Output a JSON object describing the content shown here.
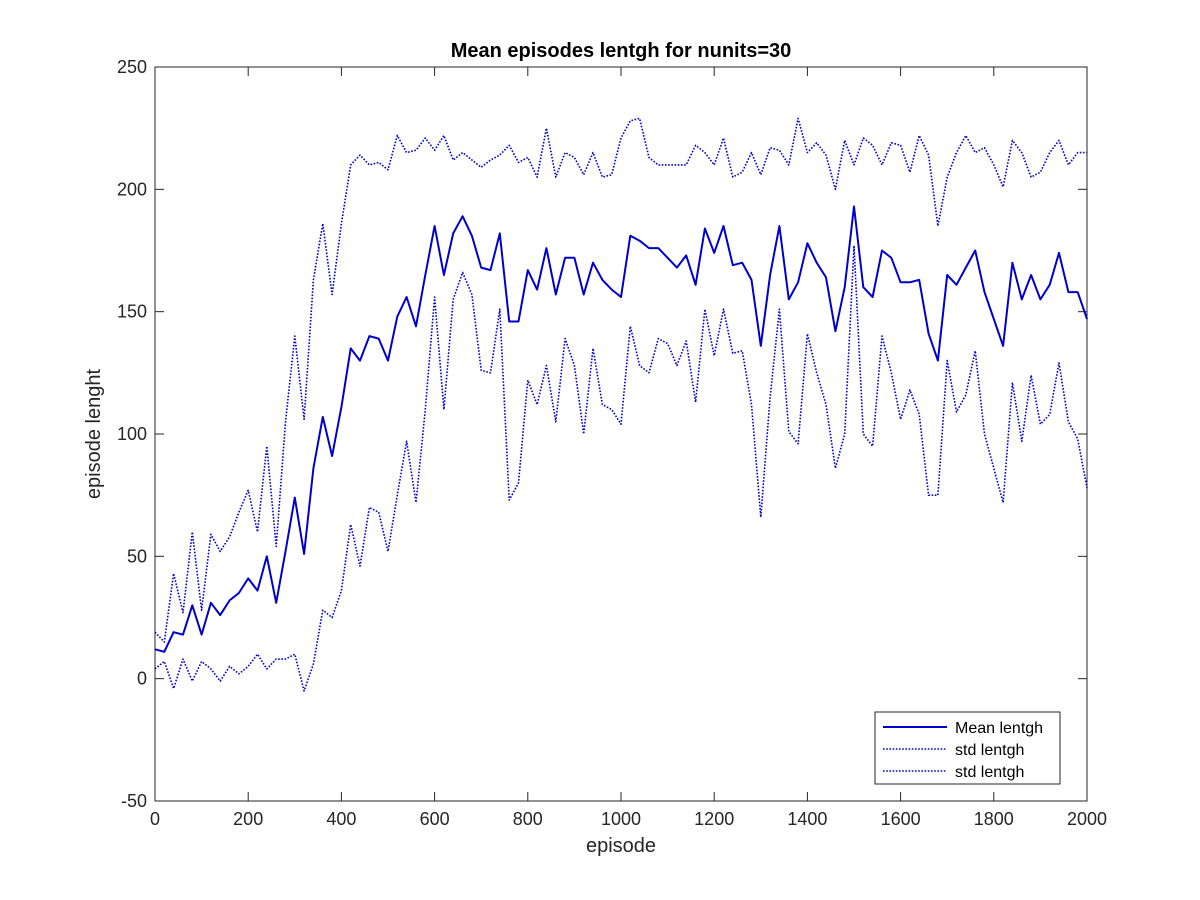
{
  "chart_data": {
    "type": "line",
    "title": "Mean episodes lentgh for nunits=30",
    "xlabel": "episode",
    "ylabel": "episode lenght",
    "xlim": [
      0,
      2000
    ],
    "ylim": [
      -50,
      250
    ],
    "xticks": [
      0,
      200,
      400,
      600,
      800,
      1000,
      1200,
      1400,
      1600,
      1800,
      2000
    ],
    "yticks": [
      -50,
      0,
      50,
      100,
      150,
      200,
      250
    ],
    "grid": false,
    "legend_position": "bottom-right",
    "line_color": "#0000cc",
    "x": [
      0,
      20,
      40,
      60,
      80,
      100,
      120,
      140,
      160,
      180,
      200,
      220,
      240,
      260,
      280,
      300,
      320,
      340,
      360,
      380,
      400,
      420,
      440,
      460,
      480,
      500,
      520,
      540,
      560,
      580,
      600,
      620,
      640,
      660,
      680,
      700,
      720,
      740,
      760,
      780,
      800,
      820,
      840,
      860,
      880,
      900,
      920,
      940,
      960,
      980,
      1000,
      1020,
      1040,
      1060,
      1080,
      1100,
      1120,
      1140,
      1160,
      1180,
      1200,
      1220,
      1240,
      1260,
      1280,
      1300,
      1320,
      1340,
      1360,
      1380,
      1400,
      1420,
      1440,
      1460,
      1480,
      1500,
      1520,
      1540,
      1560,
      1580,
      1600,
      1620,
      1640,
      1660,
      1680,
      1700,
      1720,
      1740,
      1760,
      1780,
      1800,
      1820,
      1840,
      1860,
      1880,
      1900,
      1920,
      1940,
      1960,
      1980,
      2000
    ],
    "series": [
      {
        "name": "Mean lentgh",
        "style": "solid",
        "values": [
          12,
          11,
          19,
          18,
          30,
          18,
          31,
          26,
          32,
          35,
          41,
          36,
          50,
          31,
          52,
          74,
          51,
          86,
          107,
          91,
          111,
          135,
          130,
          140,
          139,
          130,
          148,
          156,
          144,
          165,
          185,
          165,
          182,
          189,
          181,
          168,
          167,
          182,
          146,
          146,
          167,
          159,
          176,
          157,
          172,
          172,
          157,
          170,
          163,
          159,
          156,
          181,
          179,
          176,
          176,
          172,
          168,
          173,
          161,
          184,
          174,
          185,
          169,
          170,
          163,
          136,
          165,
          185,
          155,
          162,
          178,
          170,
          164,
          142,
          160,
          193,
          160,
          156,
          175,
          172,
          162,
          162,
          163,
          141,
          130,
          165,
          161,
          168,
          175,
          158,
          147,
          136,
          170,
          155,
          165,
          155,
          161,
          174,
          158,
          158,
          147
        ]
      },
      {
        "name": "std lentgh",
        "style": "dotted",
        "values": [
          19,
          15,
          43,
          27,
          60,
          28,
          59,
          52,
          58,
          68,
          77,
          60,
          95,
          54,
          105,
          140,
          106,
          163,
          186,
          157,
          186,
          210,
          214,
          210,
          211,
          208,
          222,
          215,
          216,
          221,
          216,
          222,
          212,
          215,
          212,
          209,
          212,
          214,
          218,
          211,
          213,
          205,
          225,
          205,
          215,
          213,
          206,
          215,
          205,
          206,
          221,
          228,
          229,
          213,
          210,
          210,
          210,
          210,
          218,
          215,
          210,
          221,
          205,
          207,
          215,
          206,
          217,
          216,
          210,
          229,
          215,
          219,
          214,
          200,
          220,
          210,
          221,
          218,
          210,
          219,
          218,
          207,
          222,
          214,
          185,
          205,
          215,
          222,
          215,
          217,
          210,
          201,
          220,
          215,
          205,
          207,
          215,
          220,
          210,
          215,
          215
        ]
      },
      {
        "name": "std lentgh",
        "style": "dotted",
        "values": [
          4,
          7,
          -4,
          8,
          -1,
          7,
          4,
          -1,
          5,
          2,
          5,
          10,
          4,
          8,
          8,
          10,
          -5,
          6,
          28,
          25,
          36,
          63,
          46,
          70,
          68,
          52,
          75,
          97,
          72,
          110,
          156,
          110,
          155,
          166,
          157,
          126,
          125,
          151,
          73,
          80,
          122,
          112,
          128,
          105,
          139,
          128,
          100,
          135,
          112,
          110,
          104,
          144,
          128,
          125,
          139,
          137,
          128,
          138,
          113,
          151,
          132,
          151,
          133,
          134,
          112,
          66,
          115,
          151,
          101,
          96,
          141,
          125,
          112,
          86,
          100,
          177,
          100,
          95,
          140,
          125,
          106,
          118,
          108,
          75,
          75,
          130,
          109,
          116,
          134,
          100,
          86,
          72,
          121,
          97,
          124,
          104,
          108,
          129,
          105,
          98,
          78
        ]
      }
    ]
  }
}
